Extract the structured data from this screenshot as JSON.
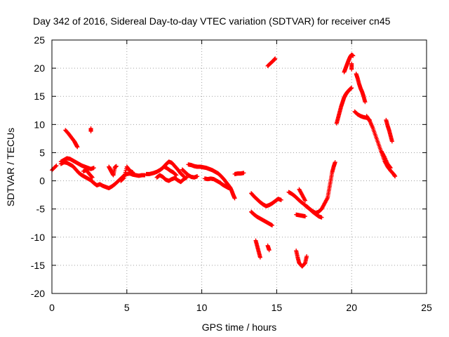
{
  "chart_data": {
    "type": "scatter",
    "title": "Day 342 of 2016, Sidereal Day-to-day VTEC variation (SDTVAR) for receiver cn45",
    "xlabel": "GPS time / hours",
    "ylabel": "SDTVAR / TECUs",
    "xlim": [
      0,
      25
    ],
    "ylim": [
      -20,
      25
    ],
    "xticks": [
      0,
      5,
      10,
      15,
      20,
      25
    ],
    "yticks": [
      -20,
      -15,
      -10,
      -5,
      0,
      5,
      10,
      15,
      20,
      25
    ],
    "grid": true,
    "marker": "+",
    "colors": {
      "series": "#ff0000",
      "grid": "#a0a0a0",
      "axes": "#000000"
    },
    "series": [
      {
        "segments": [
          [
            [
              0.0,
              1.9
            ],
            [
              0.3,
              2.7
            ]
          ],
          [
            [
              0.6,
              3.4
            ],
            [
              0.8,
              3.7
            ],
            [
              1.0,
              4.0
            ],
            [
              1.2,
              3.9
            ],
            [
              1.4,
              3.6
            ],
            [
              1.6,
              3.3
            ],
            [
              1.8,
              3.0
            ],
            [
              2.0,
              2.7
            ],
            [
              2.2,
              2.5
            ],
            [
              2.4,
              2.3
            ],
            [
              2.6,
              2.1
            ],
            [
              2.8,
              2.3
            ]
          ],
          [
            [
              0.6,
              3.0
            ],
            [
              0.8,
              3.3
            ],
            [
              1.0,
              3.2
            ],
            [
              1.2,
              2.9
            ],
            [
              1.4,
              2.6
            ],
            [
              1.6,
              2.0
            ],
            [
              1.8,
              1.4
            ],
            [
              2.0,
              1.0
            ],
            [
              2.2,
              0.7
            ],
            [
              2.4,
              0.4
            ],
            [
              2.6,
              0.1
            ],
            [
              2.8,
              -0.4
            ],
            [
              3.0,
              -0.8
            ],
            [
              3.2,
              -0.6
            ],
            [
              3.4,
              -0.9
            ],
            [
              3.6,
              -1.1
            ],
            [
              3.8,
              -1.3
            ],
            [
              4.0,
              -1.0
            ],
            [
              4.2,
              -0.6
            ],
            [
              4.4,
              -0.1
            ],
            [
              4.6,
              0.4
            ],
            [
              4.8,
              0.9
            ],
            [
              5.0,
              1.2
            ],
            [
              5.2,
              1.3
            ],
            [
              5.4,
              1.1
            ],
            [
              5.6,
              1.0
            ],
            [
              5.8,
              0.9
            ],
            [
              6.0,
              1.0
            ],
            [
              6.2,
              1.0
            ]
          ],
          [
            [
              0.9,
              9.0
            ],
            [
              1.1,
              8.4
            ],
            [
              1.3,
              7.7
            ],
            [
              1.5,
              7.0
            ],
            [
              1.6,
              6.5
            ],
            [
              1.7,
              6.0
            ]
          ],
          [
            [
              2.1,
              1.7
            ],
            [
              2.3,
              1.9
            ],
            [
              2.5,
              1.2
            ],
            [
              2.7,
              0.6
            ]
          ],
          [
            [
              2.6,
              9.3
            ],
            [
              2.6,
              8.8
            ]
          ],
          [
            [
              3.8,
              2.5
            ],
            [
              3.9,
              2.0
            ],
            [
              4.0,
              1.5
            ],
            [
              4.1,
              1.0
            ],
            [
              4.2,
              2.4
            ],
            [
              4.3,
              2.6
            ]
          ],
          [
            [
              4.6,
              0.0
            ],
            [
              4.8,
              0.5
            ],
            [
              5.0,
              2.5
            ],
            [
              5.2,
              1.8
            ],
            [
              5.4,
              1.5
            ]
          ],
          [
            [
              6.3,
              1.2
            ],
            [
              6.5,
              1.2
            ],
            [
              6.8,
              1.4
            ],
            [
              7.0,
              1.6
            ],
            [
              7.2,
              1.9
            ],
            [
              7.4,
              2.3
            ],
            [
              7.6,
              2.9
            ],
            [
              7.8,
              3.4
            ],
            [
              8.0,
              3.2
            ],
            [
              8.2,
              2.6
            ],
            [
              8.4,
              2.0
            ],
            [
              8.6,
              1.3
            ],
            [
              8.8,
              0.8
            ]
          ],
          [
            [
              7.0,
              0.6
            ],
            [
              7.2,
              1.0
            ],
            [
              7.4,
              0.7
            ],
            [
              7.6,
              0.2
            ],
            [
              7.8,
              0.0
            ],
            [
              8.0,
              0.3
            ],
            [
              8.2,
              0.5
            ],
            [
              8.4,
              0.1
            ],
            [
              8.6,
              -0.2
            ],
            [
              8.8,
              0.3
            ],
            [
              9.0,
              0.6
            ]
          ],
          [
            [
              7.5,
              2.5
            ],
            [
              7.7,
              2.2
            ],
            [
              7.9,
              1.8
            ],
            [
              8.1,
              1.5
            ],
            [
              8.3,
              1.0
            ]
          ],
          [
            [
              8.7,
              2.0
            ],
            [
              8.9,
              1.5
            ],
            [
              9.1,
              1.0
            ],
            [
              9.3,
              0.7
            ],
            [
              9.5,
              0.6
            ],
            [
              9.7,
              0.8
            ]
          ],
          [
            [
              9.1,
              2.9
            ],
            [
              9.3,
              2.8
            ],
            [
              9.5,
              2.6
            ],
            [
              9.7,
              2.5
            ],
            [
              9.9,
              2.5
            ],
            [
              10.1,
              2.4
            ],
            [
              10.3,
              2.3
            ],
            [
              10.5,
              2.1
            ],
            [
              10.7,
              1.9
            ],
            [
              10.9,
              1.6
            ],
            [
              11.1,
              1.3
            ],
            [
              11.3,
              0.8
            ],
            [
              11.5,
              0.2
            ],
            [
              11.7,
              -0.5
            ],
            [
              11.9,
              -1.2
            ],
            [
              12.0,
              -1.8
            ],
            [
              12.1,
              -2.5
            ],
            [
              12.2,
              -3.1
            ]
          ],
          [
            [
              10.2,
              0.4
            ],
            [
              10.4,
              0.3
            ],
            [
              10.6,
              0.4
            ],
            [
              10.8,
              0.3
            ],
            [
              11.0,
              0.0
            ],
            [
              11.2,
              -0.3
            ],
            [
              11.4,
              -0.7
            ],
            [
              11.6,
              -1.0
            ],
            [
              11.8,
              -1.3
            ]
          ],
          [
            [
              12.2,
              1.2
            ],
            [
              12.4,
              1.3
            ],
            [
              12.6,
              1.3
            ],
            [
              12.8,
              1.4
            ]
          ],
          [
            [
              13.3,
              -2.2
            ],
            [
              13.5,
              -2.8
            ],
            [
              13.7,
              -3.3
            ],
            [
              13.9,
              -3.8
            ],
            [
              14.1,
              -4.2
            ],
            [
              14.3,
              -4.5
            ],
            [
              14.5,
              -4.3
            ],
            [
              14.7,
              -4.0
            ],
            [
              14.9,
              -3.6
            ],
            [
              15.1,
              -3.2
            ],
            [
              15.3,
              -3.4
            ]
          ],
          [
            [
              13.3,
              -5.5
            ],
            [
              13.5,
              -6.0
            ],
            [
              13.7,
              -6.4
            ],
            [
              13.9,
              -6.7
            ],
            [
              14.1,
              -7.0
            ],
            [
              14.3,
              -7.3
            ],
            [
              14.5,
              -7.6
            ],
            [
              14.7,
              -7.9
            ]
          ],
          [
            [
              13.6,
              -10.6
            ],
            [
              13.7,
              -11.6
            ],
            [
              13.8,
              -12.6
            ],
            [
              13.9,
              -13.6
            ]
          ],
          [
            [
              14.4,
              -11.5
            ],
            [
              14.5,
              -12.3
            ]
          ],
          [
            [
              14.4,
              20.4
            ],
            [
              14.6,
              20.9
            ],
            [
              14.8,
              21.4
            ],
            [
              14.9,
              21.7
            ]
          ],
          [
            [
              15.8,
              -2.0
            ],
            [
              16.0,
              -2.3
            ],
            [
              16.2,
              -2.7
            ],
            [
              16.4,
              -3.2
            ],
            [
              16.6,
              -3.7
            ],
            [
              16.8,
              -4.1
            ],
            [
              17.0,
              -4.6
            ],
            [
              17.2,
              -5.0
            ],
            [
              17.4,
              -5.5
            ],
            [
              17.6,
              -5.9
            ],
            [
              17.8,
              -6.3
            ],
            [
              18.0,
              -6.5
            ]
          ],
          [
            [
              16.3,
              -12.4
            ],
            [
              16.4,
              -13.6
            ],
            [
              16.5,
              -14.6
            ],
            [
              16.7,
              -15.2
            ],
            [
              16.9,
              -14.6
            ],
            [
              17.0,
              -13.4
            ]
          ],
          [
            [
              16.3,
              -6.0
            ],
            [
              16.5,
              -6.1
            ],
            [
              16.7,
              -6.2
            ],
            [
              16.9,
              -6.3
            ]
          ],
          [
            [
              16.5,
              -1.5
            ],
            [
              16.7,
              -2.5
            ],
            [
              16.9,
              -3.5
            ]
          ],
          [
            [
              17.0,
              -4.5
            ],
            [
              17.2,
              -5.0
            ],
            [
              17.4,
              -5.4
            ],
            [
              17.6,
              -5.7
            ],
            [
              17.8,
              -5.5
            ],
            [
              18.0,
              -5.0
            ],
            [
              18.2,
              -4.0
            ],
            [
              18.4,
              -3.0
            ],
            [
              18.5,
              -1.5
            ],
            [
              18.6,
              0.0
            ],
            [
              18.7,
              1.5
            ],
            [
              18.8,
              2.5
            ],
            [
              18.9,
              3.3
            ]
          ],
          [
            [
              19.0,
              10.2
            ],
            [
              19.1,
              11.2
            ],
            [
              19.2,
              12.2
            ],
            [
              19.3,
              13.2
            ],
            [
              19.4,
              14.0
            ],
            [
              19.5,
              14.8
            ],
            [
              19.6,
              15.3
            ],
            [
              19.7,
              15.7
            ],
            [
              19.8,
              16.0
            ],
            [
              19.9,
              16.3
            ],
            [
              20.0,
              16.5
            ]
          ],
          [
            [
              19.5,
              19.3
            ],
            [
              19.6,
              20.0
            ],
            [
              19.7,
              20.7
            ],
            [
              19.8,
              21.4
            ],
            [
              19.9,
              22.0
            ],
            [
              20.0,
              22.4
            ],
            [
              20.1,
              22.2
            ]
          ],
          [
            [
              20.0,
              20.8
            ],
            [
              20.0,
              19.8
            ]
          ],
          [
            [
              20.2,
              12.3
            ],
            [
              20.4,
              11.8
            ],
            [
              20.6,
              11.5
            ],
            [
              20.8,
              11.3
            ],
            [
              21.0,
              11.2
            ],
            [
              21.2,
              10.8
            ]
          ],
          [
            [
              20.3,
              19.0
            ],
            [
              20.4,
              18.2
            ],
            [
              20.5,
              17.2
            ],
            [
              20.6,
              16.4
            ],
            [
              20.7,
              15.8
            ],
            [
              20.8,
              15.0
            ],
            [
              20.9,
              14.0
            ]
          ],
          [
            [
              21.0,
              11.5
            ],
            [
              21.2,
              10.7
            ],
            [
              21.4,
              9.5
            ],
            [
              21.6,
              8.0
            ],
            [
              21.8,
              6.5
            ],
            [
              22.0,
              5.0
            ],
            [
              22.2,
              3.5
            ],
            [
              22.4,
              2.5
            ],
            [
              22.6,
              1.8
            ],
            [
              22.8,
              1.2
            ],
            [
              22.9,
              0.8
            ]
          ],
          [
            [
              22.0,
              5.2
            ],
            [
              22.2,
              4.2
            ],
            [
              22.4,
              3.0
            ],
            [
              22.6,
              2.3
            ]
          ],
          [
            [
              22.3,
              10.8
            ],
            [
              22.4,
              9.8
            ],
            [
              22.5,
              9.0
            ],
            [
              22.6,
              8.0
            ],
            [
              22.7,
              7.0
            ]
          ]
        ]
      }
    ]
  }
}
